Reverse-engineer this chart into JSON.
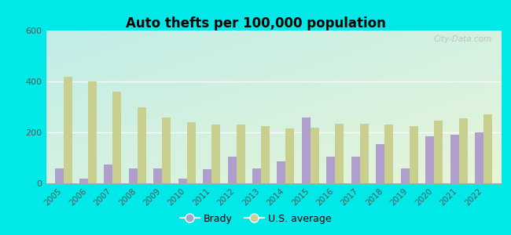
{
  "title": "Auto thefts per 100,000 population",
  "years": [
    2005,
    2006,
    2007,
    2008,
    2009,
    2010,
    2011,
    2012,
    2013,
    2014,
    2015,
    2016,
    2017,
    2018,
    2019,
    2020,
    2021,
    2022
  ],
  "brady": [
    60,
    20,
    75,
    60,
    60,
    20,
    55,
    105,
    60,
    85,
    260,
    105,
    105,
    155,
    60,
    185,
    190,
    200
  ],
  "us_avg": [
    420,
    400,
    360,
    300,
    260,
    240,
    230,
    230,
    225,
    215,
    220,
    235,
    235,
    230,
    225,
    245,
    255,
    270
  ],
  "brady_color": "#b09fcc",
  "us_avg_color": "#c8cf8f",
  "ylim": [
    0,
    600
  ],
  "yticks": [
    0,
    200,
    400,
    600
  ],
  "outer_bg": "#00e8e8",
  "watermark": "City-Data.com",
  "legend_brady": "Brady",
  "legend_us": "U.S. average",
  "bg_top_left": "#b2ece8",
  "bg_bottom_right": "#e8f5d8"
}
